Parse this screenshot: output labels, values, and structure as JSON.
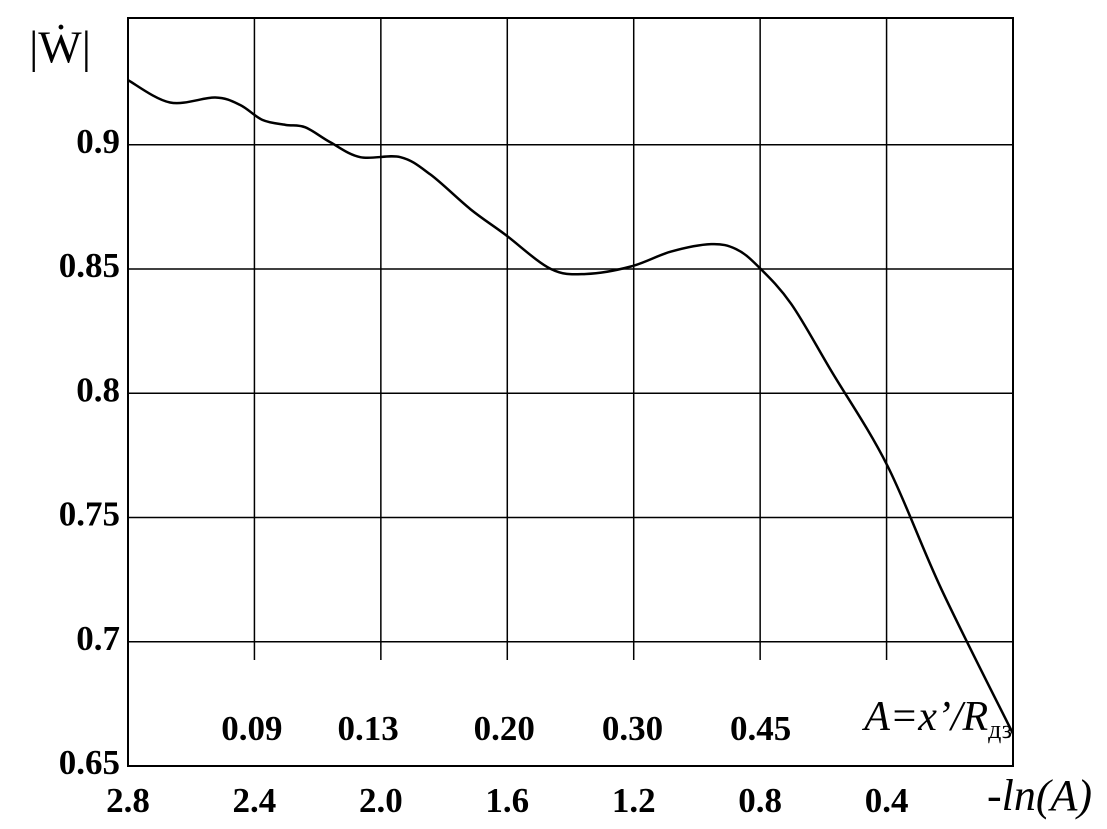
{
  "chart_data": {
    "type": "line",
    "y_label": "|Ẇ|",
    "x_label": "-ln(A)",
    "annotation": {
      "main": "A=x’/R",
      "sub": "дз"
    },
    "x": [
      2.8,
      2.667,
      2.524,
      2.445,
      2.375,
      2.302,
      2.239,
      2.16,
      2.065,
      1.938,
      1.843,
      1.716,
      1.608,
      1.462,
      1.351,
      1.209,
      1.082,
      0.955,
      0.876,
      0.806,
      0.702,
      0.575,
      0.398,
      0.226,
      0.0
    ],
    "series": [
      {
        "color": "#000000",
        "values": [
          0.926,
          0.917,
          0.919,
          0.916,
          0.91,
          0.908,
          0.907,
          0.901,
          0.895,
          0.895,
          0.888,
          0.874,
          0.864,
          0.85,
          0.848,
          0.851,
          0.857,
          0.86,
          0.858,
          0.851,
          0.836,
          0.809,
          0.771,
          0.721,
          0.663
        ]
      }
    ],
    "xlim": [
      2.8,
      0
    ],
    "ylim": [
      0.65,
      0.951
    ],
    "xticks": [
      2.8,
      2.4,
      {
        "value": 2.0,
        "label": "2.0"
      },
      1.6,
      1.2,
      0.8,
      0.4
    ],
    "yticks": [
      0.65,
      0.7,
      0.75,
      0.8,
      0.85,
      0.9
    ],
    "secondary_xticks": [
      0.09,
      0.13,
      {
        "value": 0.2,
        "label": "0.20"
      },
      {
        "value": 0.3,
        "label": "0.30"
      },
      0.45
    ],
    "grid": true
  }
}
